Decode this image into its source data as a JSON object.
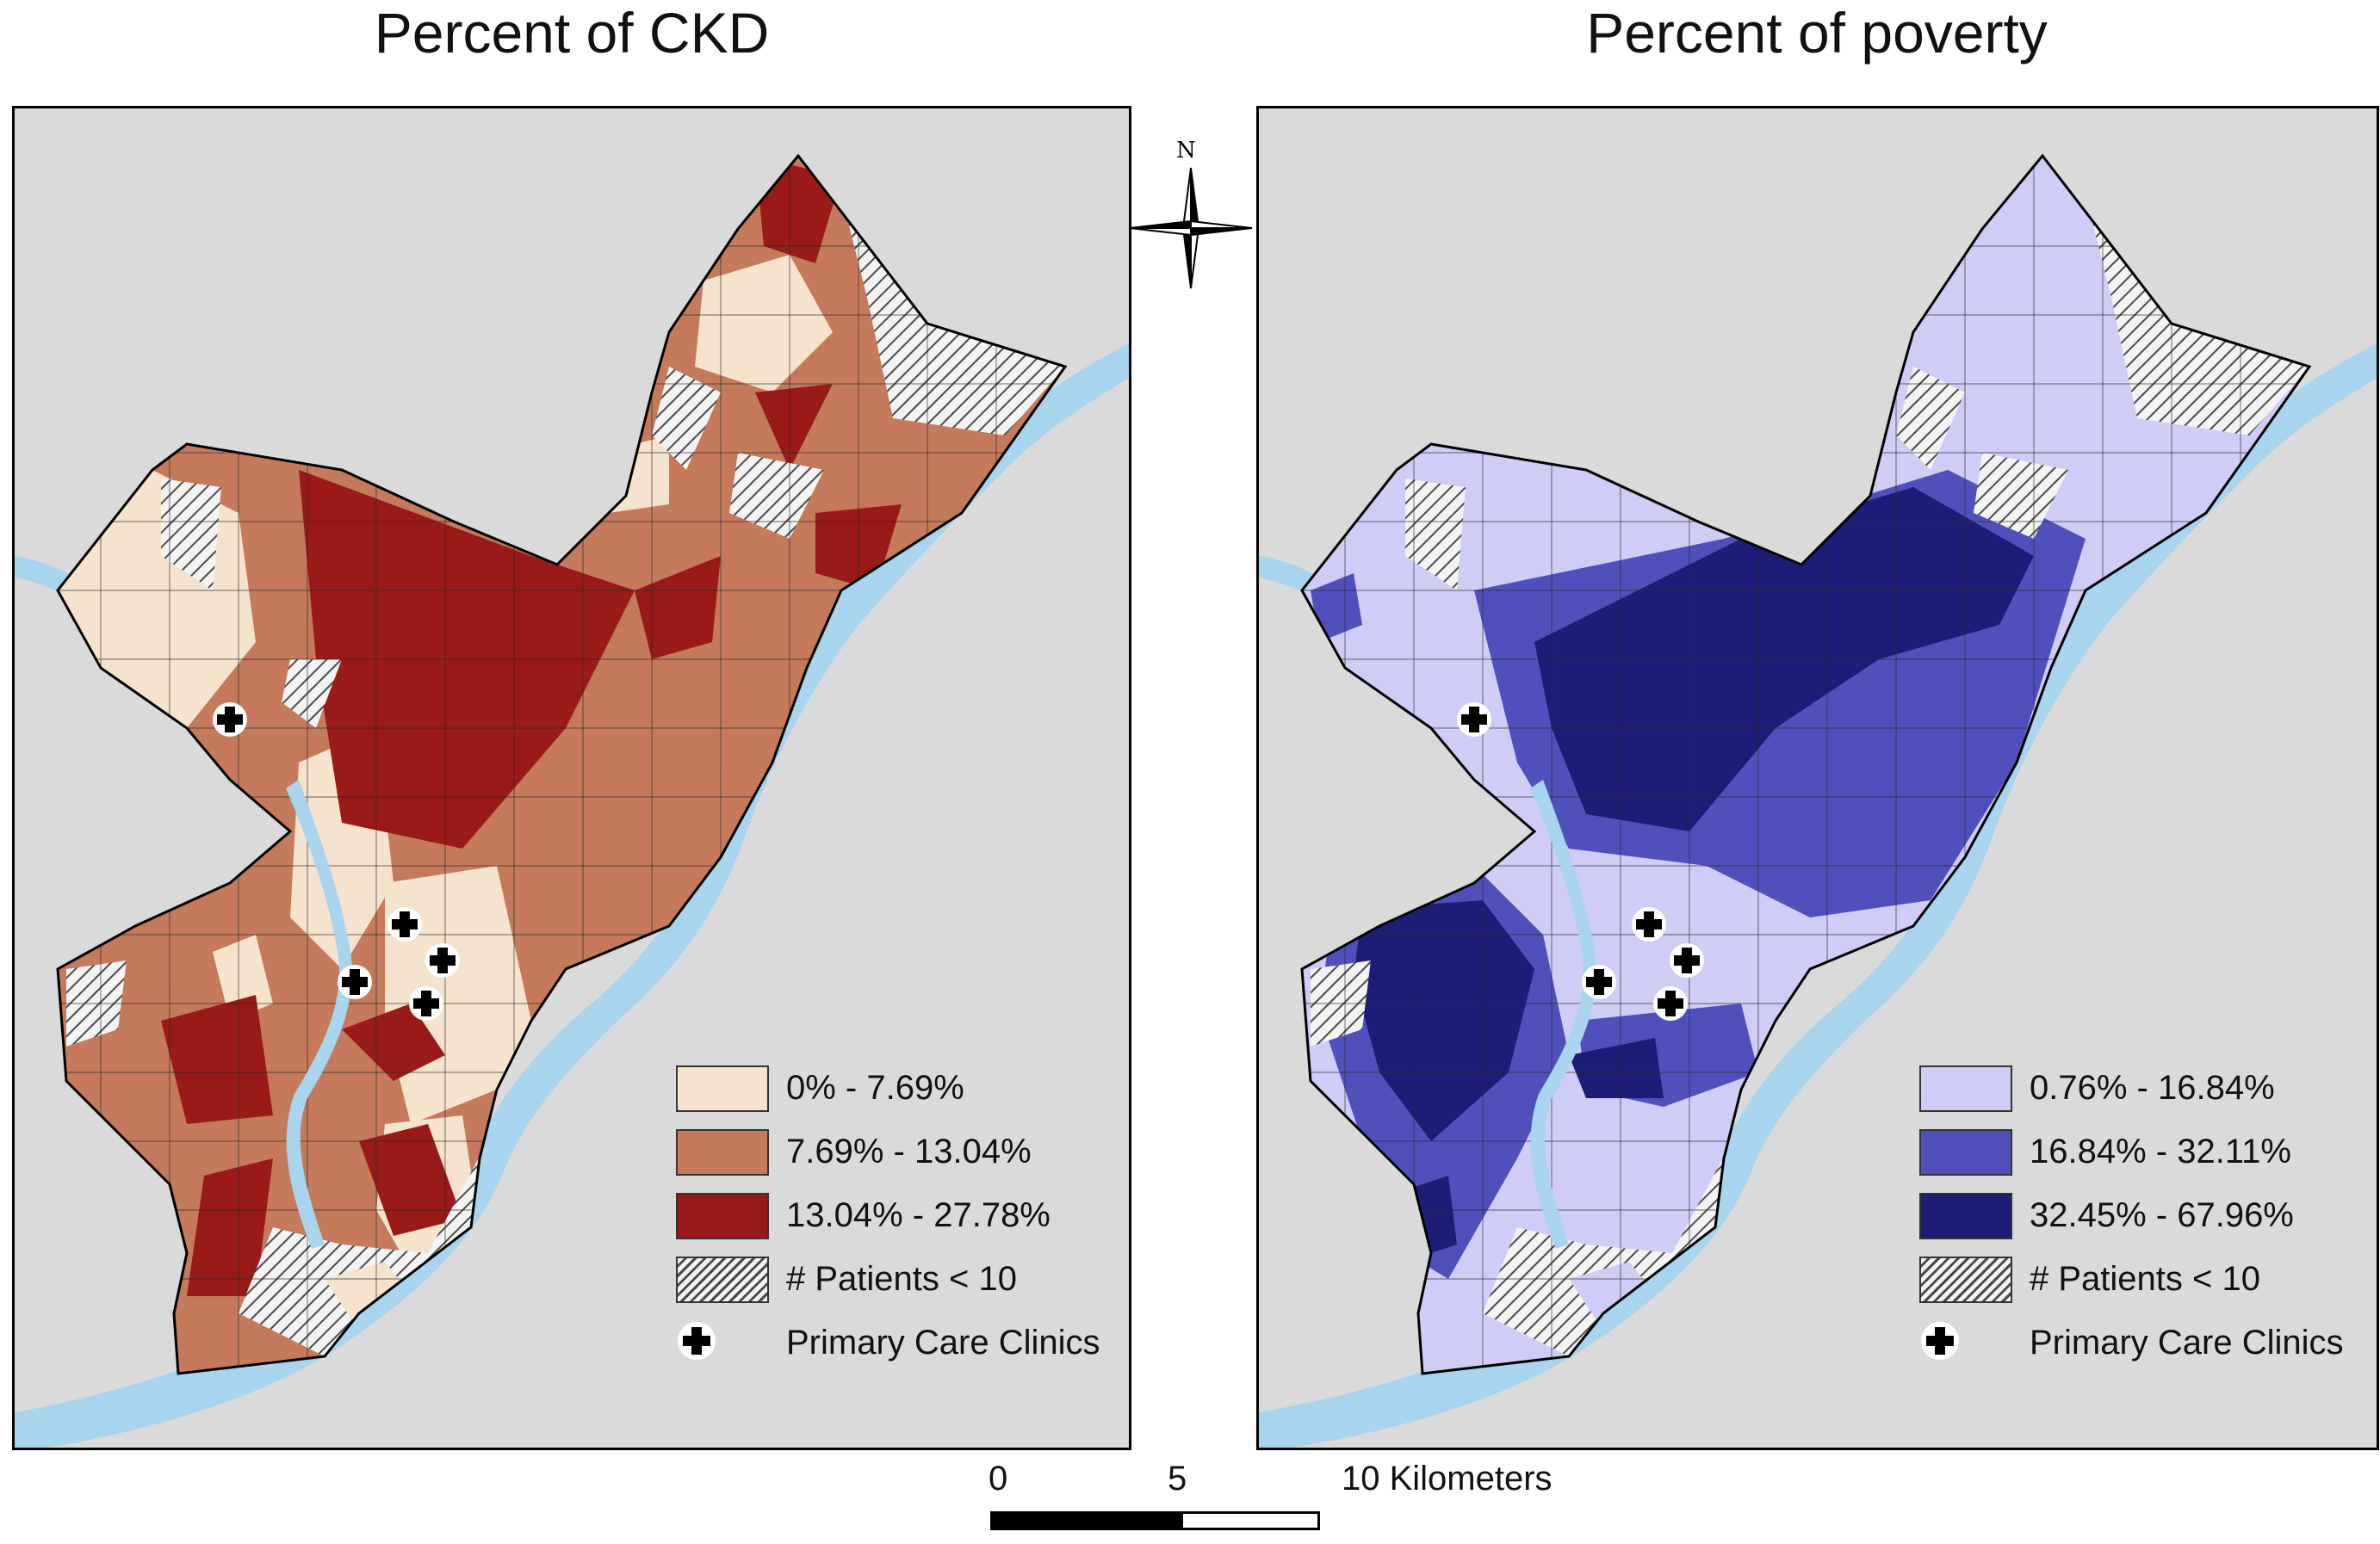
{
  "titles": {
    "left": "Percent of CKD",
    "right": "Percent of poverty"
  },
  "colors": {
    "background": "#dadada",
    "water": "#a8d4ee",
    "ckd_low": "#f6e3cd",
    "ckd_mid": "#c47a5b",
    "ckd_high": "#9a1a1a",
    "poverty_low": "#cfccf6",
    "poverty_mid": "#5050bd",
    "poverty_high": "#1d1d78",
    "hatch": "#4a4a4a",
    "boundary": "#000000"
  },
  "legend_ckd": {
    "classes": [
      {
        "label": "0% - 7.69%",
        "min": 0,
        "max": 7.69,
        "color": "#f6e3cd"
      },
      {
        "label": "7.69% - 13.04%",
        "min": 7.69,
        "max": 13.04,
        "color": "#c47a5b"
      },
      {
        "label": "13.04% - 27.78%",
        "min": 13.04,
        "max": 27.78,
        "color": "#9a1a1a"
      }
    ],
    "patients_label": "# Patients < 10",
    "clinics_label": "Primary Care Clinics"
  },
  "legend_poverty": {
    "classes": [
      {
        "label": "0.76% - 16.84%",
        "min": 0.76,
        "max": 16.84,
        "color": "#cfccf6"
      },
      {
        "label": "16.84% - 32.11%",
        "min": 16.84,
        "max": 32.11,
        "color": "#5050bd"
      },
      {
        "label": "32.45% - 67.96%",
        "min": 32.45,
        "max": 67.96,
        "color": "#1d1d78"
      }
    ],
    "patients_label": "# Patients < 10",
    "clinics_label": "Primary Care Clinics"
  },
  "north_arrow": {
    "label": "N"
  },
  "scale_bar": {
    "ticks": [
      "0",
      "5",
      "10 Kilometers"
    ],
    "values_km": [
      0,
      5,
      10
    ]
  },
  "icons": {
    "clinic": "plus-icon",
    "north": "compass-icon"
  }
}
